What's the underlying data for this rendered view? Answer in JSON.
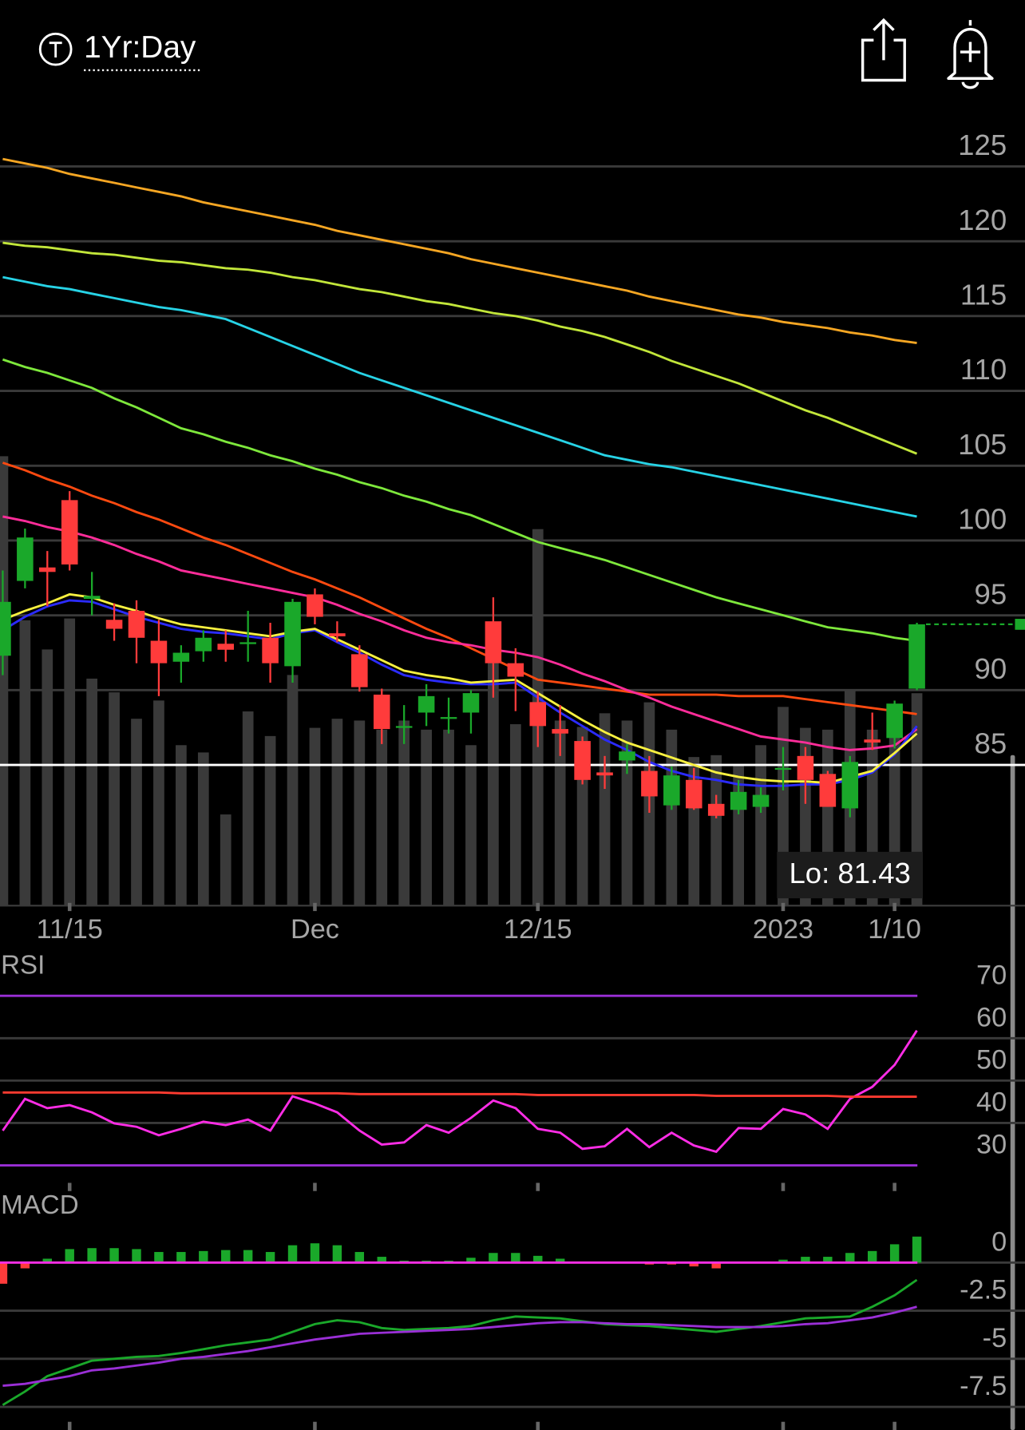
{
  "header": {
    "timeframe": "1Yr:Day"
  },
  "chart_data": [
    {
      "type": "candlestick",
      "categories": [
        null,
        null,
        null,
        "11/15",
        null,
        null,
        null,
        null,
        null,
        null,
        null,
        null,
        null,
        null,
        "Dec",
        null,
        null,
        null,
        null,
        null,
        null,
        null,
        null,
        null,
        "12/15",
        null,
        null,
        null,
        null,
        null,
        null,
        null,
        null,
        null,
        null,
        "2023",
        null,
        null,
        null,
        null,
        "1/10",
        null
      ],
      "open": [
        92.3,
        97.3,
        98.2,
        102.7,
        96.1,
        94.7,
        95.3,
        93.3,
        91.9,
        92.6,
        93.1,
        93.1,
        93.5,
        91.6,
        96.4,
        93.8,
        92.4,
        89.7,
        87.5,
        88.5,
        88.1,
        88.5,
        94.6,
        91.8,
        89.2,
        87.4,
        86.6,
        84.5,
        85.3,
        84.6,
        82.3,
        84.0,
        82.4,
        82.0,
        82.2,
        84.7,
        85.6,
        84.4,
        82.1,
        86.7,
        86.8,
        90.1
      ],
      "high": [
        98.0,
        100.8,
        99.3,
        103.3,
        97.9,
        95.8,
        96.0,
        94.7,
        93.0,
        94.0,
        94.0,
        95.3,
        94.5,
        96.1,
        96.8,
        94.6,
        93.0,
        90.1,
        89.0,
        90.4,
        89.5,
        90.0,
        96.2,
        92.8,
        89.9,
        89.0,
        86.9,
        85.6,
        86.4,
        85.6,
        84.9,
        84.8,
        83.0,
        84.0,
        83.5,
        86.2,
        86.2,
        84.6,
        85.6,
        88.5,
        89.3,
        94.5
      ],
      "low": [
        91.0,
        96.8,
        95.6,
        98.0,
        95.0,
        93.3,
        91.8,
        89.6,
        90.5,
        91.9,
        91.9,
        91.9,
        90.5,
        90.5,
        94.4,
        93.2,
        89.9,
        86.4,
        86.4,
        87.6,
        87.1,
        87.1,
        89.5,
        88.6,
        86.2,
        85.6,
        83.7,
        83.4,
        84.4,
        81.8,
        82.0,
        82.0,
        81.43,
        81.7,
        81.8,
        83.3,
        82.4,
        82.2,
        81.5,
        86.0,
        86.1,
        90.0
      ],
      "close": [
        95.9,
        100.2,
        97.9,
        98.4,
        96.3,
        94.1,
        93.5,
        91.8,
        92.5,
        93.5,
        92.7,
        93.2,
        91.8,
        95.9,
        94.9,
        93.6,
        90.2,
        87.4,
        87.6,
        89.6,
        88.2,
        89.8,
        91.8,
        90.9,
        87.6,
        87.1,
        84.0,
        84.3,
        85.9,
        82.9,
        84.3,
        82.1,
        81.6,
        83.2,
        83.0,
        84.8,
        84.0,
        82.2,
        85.2,
        86.5,
        89.1,
        94.4
      ],
      "volume": [
        49.3,
        31.3,
        28.1,
        31.5,
        24.9,
        23.4,
        20.5,
        22.5,
        17.6,
        16.8,
        10.0,
        21.3,
        18.6,
        25.3,
        19.5,
        20.5,
        20.3,
        19.3,
        20.3,
        19.3,
        19.3,
        17.6,
        30.3,
        19.9,
        41.3,
        20.3,
        19.6,
        21.1,
        20.3,
        22.3,
        19.3,
        16.3,
        16.5,
        15.3,
        17.6,
        21.8,
        19.5,
        19.3,
        23.6,
        19.3,
        20.3,
        23.3
      ],
      "up_color": "#1aa82a",
      "down_color": "#ff3b3b",
      "volume_color": "#3a3a3a",
      "overlays": [
        {
          "color": "#f5a623",
          "values": [
            125.5,
            125.2,
            124.9,
            124.5,
            124.2,
            123.9,
            123.6,
            123.3,
            123.0,
            122.6,
            122.3,
            122.0,
            121.7,
            121.4,
            121.1,
            120.7,
            120.4,
            120.1,
            119.8,
            119.5,
            119.2,
            118.8,
            118.5,
            118.2,
            117.9,
            117.6,
            117.3,
            117.0,
            116.7,
            116.3,
            116.0,
            115.7,
            115.4,
            115.1,
            114.9,
            114.6,
            114.4,
            114.2,
            113.9,
            113.7,
            113.4,
            113.2
          ]
        },
        {
          "color": "#c2e63a",
          "values": [
            119.9,
            119.7,
            119.6,
            119.4,
            119.2,
            119.1,
            118.9,
            118.7,
            118.6,
            118.4,
            118.2,
            118.1,
            117.9,
            117.6,
            117.4,
            117.1,
            116.8,
            116.6,
            116.3,
            116.0,
            115.8,
            115.5,
            115.2,
            115.0,
            114.7,
            114.3,
            114.0,
            113.6,
            113.1,
            112.6,
            112.0,
            111.5,
            111.0,
            110.5,
            109.9,
            109.3,
            108.7,
            108.2,
            107.6,
            107.0,
            106.4,
            105.8
          ]
        },
        {
          "color": "#27d3e6",
          "values": [
            117.6,
            117.3,
            117.0,
            116.8,
            116.5,
            116.2,
            115.9,
            115.6,
            115.4,
            115.1,
            114.8,
            114.2,
            113.6,
            113.0,
            112.4,
            111.8,
            111.2,
            110.7,
            110.2,
            109.7,
            109.2,
            108.7,
            108.2,
            107.7,
            107.2,
            106.7,
            106.2,
            105.7,
            105.4,
            105.1,
            104.9,
            104.6,
            104.3,
            104.0,
            103.7,
            103.4,
            103.1,
            102.8,
            102.5,
            102.2,
            101.9,
            101.6
          ]
        },
        {
          "color": "#7ee83c",
          "values": [
            112.1,
            111.6,
            111.2,
            110.7,
            110.2,
            109.5,
            108.9,
            108.2,
            107.5,
            107.1,
            106.6,
            106.2,
            105.7,
            105.3,
            104.8,
            104.4,
            103.9,
            103.5,
            103.0,
            102.6,
            102.1,
            101.7,
            101.1,
            100.5,
            99.9,
            99.5,
            99.1,
            98.7,
            98.2,
            97.7,
            97.2,
            96.7,
            96.2,
            95.8,
            95.4,
            95.0,
            94.6,
            94.2,
            94.0,
            93.8,
            93.5,
            93.3
          ]
        },
        {
          "color": "#ff4a10",
          "values": [
            105.2,
            104.7,
            104.1,
            103.6,
            103.0,
            102.5,
            101.9,
            101.4,
            100.8,
            100.2,
            99.7,
            99.1,
            98.5,
            97.9,
            97.4,
            96.8,
            96.2,
            95.5,
            94.8,
            94.1,
            93.5,
            92.8,
            92.1,
            91.4,
            90.7,
            90.5,
            90.3,
            90.1,
            89.9,
            89.7,
            89.7,
            89.7,
            89.7,
            89.6,
            89.6,
            89.6,
            89.4,
            89.2,
            89.0,
            88.8,
            88.6,
            88.4
          ]
        },
        {
          "color": "#ff2d9a",
          "values": [
            101.6,
            101.3,
            100.9,
            100.6,
            100.2,
            99.7,
            99.1,
            98.6,
            98.0,
            97.7,
            97.4,
            97.1,
            96.8,
            96.5,
            96.2,
            95.7,
            95.1,
            94.6,
            94.0,
            93.5,
            93.2,
            93.0,
            92.7,
            92.5,
            92.2,
            91.7,
            91.1,
            90.6,
            90.0,
            89.5,
            88.9,
            88.4,
            87.9,
            87.4,
            86.9,
            86.7,
            86.5,
            86.2,
            86.0,
            86.1,
            86.3,
            87.4
          ]
        },
        {
          "color": "#2b2bff",
          "values": [
            94.0,
            94.9,
            95.6,
            96.0,
            95.9,
            95.4,
            94.9,
            94.5,
            94.1,
            93.9,
            93.8,
            93.6,
            93.4,
            93.8,
            94.0,
            93.2,
            92.5,
            91.7,
            91.0,
            90.7,
            90.5,
            90.4,
            90.4,
            90.5,
            89.5,
            88.5,
            87.6,
            86.7,
            86.0,
            85.2,
            84.6,
            84.2,
            84.0,
            83.7,
            83.6,
            83.6,
            83.7,
            83.7,
            84.0,
            84.5,
            85.7,
            87.6
          ]
        },
        {
          "color": "#f8f040",
          "values": [
            94.7,
            95.3,
            95.8,
            96.4,
            96.2,
            95.7,
            95.3,
            94.8,
            94.4,
            94.2,
            94.0,
            93.8,
            93.6,
            93.9,
            94.1,
            93.4,
            92.7,
            92.0,
            91.3,
            91.0,
            90.8,
            90.5,
            90.6,
            90.7,
            89.8,
            88.9,
            88.0,
            87.2,
            86.5,
            86.0,
            85.5,
            85.0,
            84.5,
            84.2,
            84.0,
            83.9,
            83.9,
            83.8,
            84.2,
            84.6,
            85.8,
            87.1
          ]
        }
      ],
      "hline": 85,
      "hline_color": "#ffffff",
      "low_label": "Lo: 81.43",
      "ylim": [
        75.6,
        128.2
      ],
      "yticks": [
        85,
        90,
        95,
        100,
        105,
        110,
        115,
        120,
        125
      ],
      "grid": true
    },
    {
      "type": "line",
      "title": "RSI",
      "series": [
        {
          "color": "#ff2de6",
          "values": [
            38.2,
            45.7,
            43.5,
            44.2,
            42.5,
            39.9,
            39.1,
            37.1,
            38.6,
            40.3,
            39.5,
            40.8,
            38.2,
            46.3,
            44.6,
            42.5,
            38.2,
            34.9,
            35.4,
            39.5,
            37.7,
            41.2,
            45.3,
            43.5,
            38.6,
            37.7,
            33.9,
            34.5,
            38.6,
            34.3,
            37.7,
            34.7,
            33.2,
            38.8,
            38.6,
            43.3,
            42.0,
            38.6,
            45.7,
            48.5,
            53.7,
            61.8
          ]
        },
        {
          "color": "#ff3b30",
          "values": [
            47.2,
            47.2,
            47.2,
            47.2,
            47.2,
            47.2,
            47.2,
            47.2,
            47.0,
            47.0,
            47.0,
            47.0,
            47.0,
            47.0,
            47.0,
            47.0,
            46.8,
            46.8,
            46.8,
            46.8,
            46.8,
            46.8,
            46.8,
            46.8,
            46.6,
            46.6,
            46.6,
            46.6,
            46.6,
            46.6,
            46.6,
            46.6,
            46.4,
            46.4,
            46.4,
            46.4,
            46.4,
            46.4,
            46.2,
            46.2,
            46.2,
            46.2
          ]
        }
      ],
      "levels": [
        70,
        30
      ],
      "level_color": "#9a2fd6",
      "ylim": [
        26.3,
        80.1
      ],
      "yticks": [
        30,
        40,
        50,
        60,
        70
      ],
      "grid": true
    },
    {
      "type": "macd",
      "title": "MACD",
      "histogram": [
        -1.1,
        -0.3,
        0.2,
        0.7,
        0.75,
        0.75,
        0.7,
        0.55,
        0.55,
        0.6,
        0.65,
        0.65,
        0.55,
        0.9,
        1.0,
        0.9,
        0.55,
        0.3,
        0.1,
        0.1,
        0.1,
        0.25,
        0.5,
        0.5,
        0.35,
        0.2,
        0.05,
        0.05,
        0.05,
        -0.1,
        -0.1,
        -0.2,
        -0.3,
        -0.05,
        0.05,
        0.15,
        0.3,
        0.3,
        0.5,
        0.6,
        0.95,
        1.35
      ],
      "up_color": "#1aa82a",
      "down_color": "#ff3b3b",
      "zero_color": "#ff2de6",
      "series": [
        {
          "color": "#1aa82a",
          "values": [
            -7.4,
            -6.7,
            -5.9,
            -5.5,
            -5.1,
            -5.0,
            -4.9,
            -4.85,
            -4.7,
            -4.5,
            -4.3,
            -4.15,
            -4.0,
            -3.6,
            -3.2,
            -3.0,
            -3.1,
            -3.4,
            -3.5,
            -3.45,
            -3.4,
            -3.3,
            -3.0,
            -2.8,
            -2.85,
            -2.9,
            -3.05,
            -3.2,
            -3.25,
            -3.3,
            -3.4,
            -3.5,
            -3.6,
            -3.45,
            -3.3,
            -3.1,
            -2.9,
            -2.85,
            -2.8,
            -2.3,
            -1.7,
            -0.9
          ]
        },
        {
          "color": "#9a2fd6",
          "values": [
            -6.4,
            -6.3,
            -6.1,
            -5.9,
            -5.6,
            -5.5,
            -5.35,
            -5.2,
            -5.0,
            -4.9,
            -4.75,
            -4.6,
            -4.4,
            -4.2,
            -4.0,
            -3.85,
            -3.7,
            -3.65,
            -3.6,
            -3.55,
            -3.5,
            -3.45,
            -3.35,
            -3.25,
            -3.15,
            -3.1,
            -3.1,
            -3.15,
            -3.2,
            -3.2,
            -3.25,
            -3.3,
            -3.35,
            -3.35,
            -3.35,
            -3.3,
            -3.2,
            -3.15,
            -3.0,
            -2.85,
            -2.6,
            -2.3
          ]
        }
      ],
      "ylim": [
        -8.7,
        4.0
      ],
      "yticks": [
        -7.5,
        -5,
        -2.5,
        0
      ],
      "grid": true
    }
  ]
}
